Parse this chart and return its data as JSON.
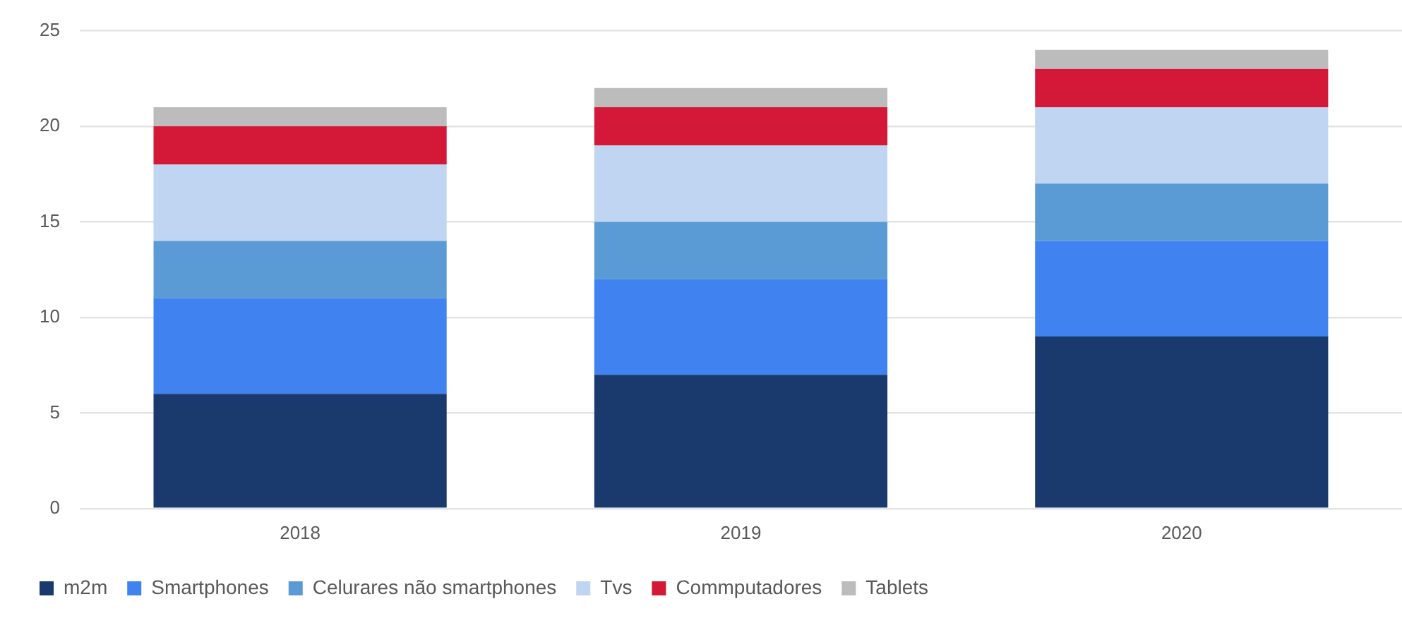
{
  "chart_data": {
    "type": "bar",
    "stacked": true,
    "categories": [
      "2018",
      "2019",
      "2020"
    ],
    "series": [
      {
        "name": "m2m",
        "color": "#1a3a6e",
        "values": [
          6,
          7,
          9
        ]
      },
      {
        "name": "Smartphones",
        "color": "#4082f0",
        "values": [
          5,
          5,
          5
        ]
      },
      {
        "name": "Celurares não smartphones",
        "color": "#5b9bd5",
        "values": [
          3,
          3,
          3
        ]
      },
      {
        "name": "Tvs",
        "color": "#c0d5f2",
        "values": [
          4,
          4,
          4
        ]
      },
      {
        "name": "Commputadores",
        "color": "#d31838",
        "values": [
          2,
          2,
          2
        ]
      },
      {
        "name": "Tablets",
        "color": "#bcbcbc",
        "values": [
          1,
          1,
          1
        ]
      }
    ],
    "ylim": [
      0,
      25
    ],
    "yticks": [
      0,
      5,
      10,
      15,
      20,
      25
    ],
    "grid": "y",
    "legend": "bottom left"
  }
}
